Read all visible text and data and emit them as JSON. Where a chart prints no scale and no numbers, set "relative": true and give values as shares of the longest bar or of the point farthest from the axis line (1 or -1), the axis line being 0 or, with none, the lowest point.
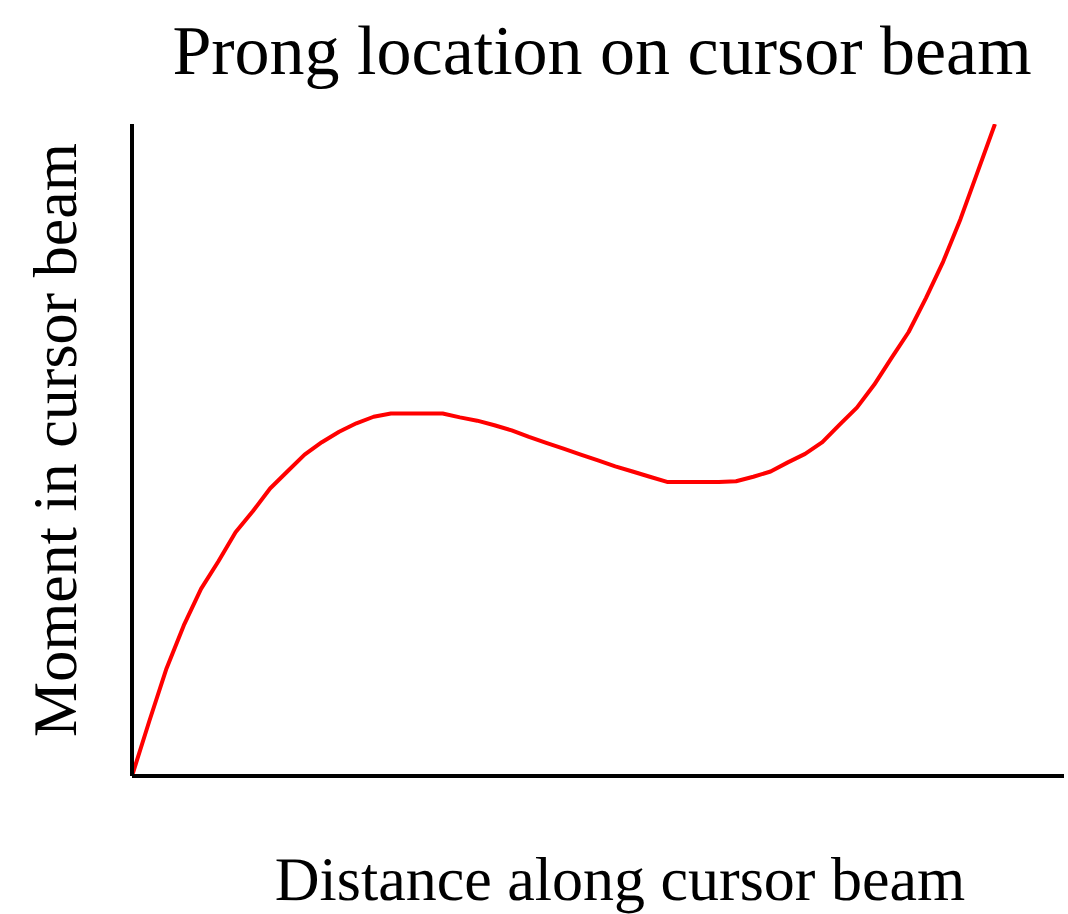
{
  "chart_data": {
    "type": "line",
    "title": "Prong location on cursor beam",
    "xlabel": "Distance along cursor beam",
    "ylabel": "Moment in cursor beam",
    "relative": true,
    "categories": [
      null,
      null,
      null,
      null,
      null,
      null,
      null,
      null,
      null,
      null,
      null,
      null,
      null,
      null,
      null,
      null,
      null,
      null,
      null,
      null,
      null,
      null,
      null,
      null,
      null,
      null,
      null,
      null,
      null,
      null,
      null,
      null,
      null,
      null,
      null,
      null,
      null,
      null,
      null,
      null,
      null,
      null,
      null,
      null,
      null,
      null,
      null,
      null,
      null,
      null,
      null,
      null,
      null,
      null,
      null
    ],
    "values": [
      0,
      0.084,
      0.165,
      0.231,
      0.287,
      0.329,
      0.374,
      0.406,
      0.441,
      0.467,
      0.493,
      0.512,
      0.528,
      0.541,
      0.551,
      0.556,
      0.556,
      0.556,
      0.556,
      0.55,
      0.545,
      0.538,
      0.53,
      0.52,
      0.511,
      0.502,
      0.493,
      0.484,
      0.475,
      0.467,
      0.459,
      0.451,
      0.451,
      0.451,
      0.451,
      0.452,
      0.459,
      0.467,
      0.481,
      0.494,
      0.512,
      0.539,
      0.565,
      0.6,
      0.641,
      0.681,
      0.733,
      0.789,
      0.854,
      0.927,
      1,
      null,
      null,
      null,
      null
    ],
    "color": "#ff0000"
  }
}
